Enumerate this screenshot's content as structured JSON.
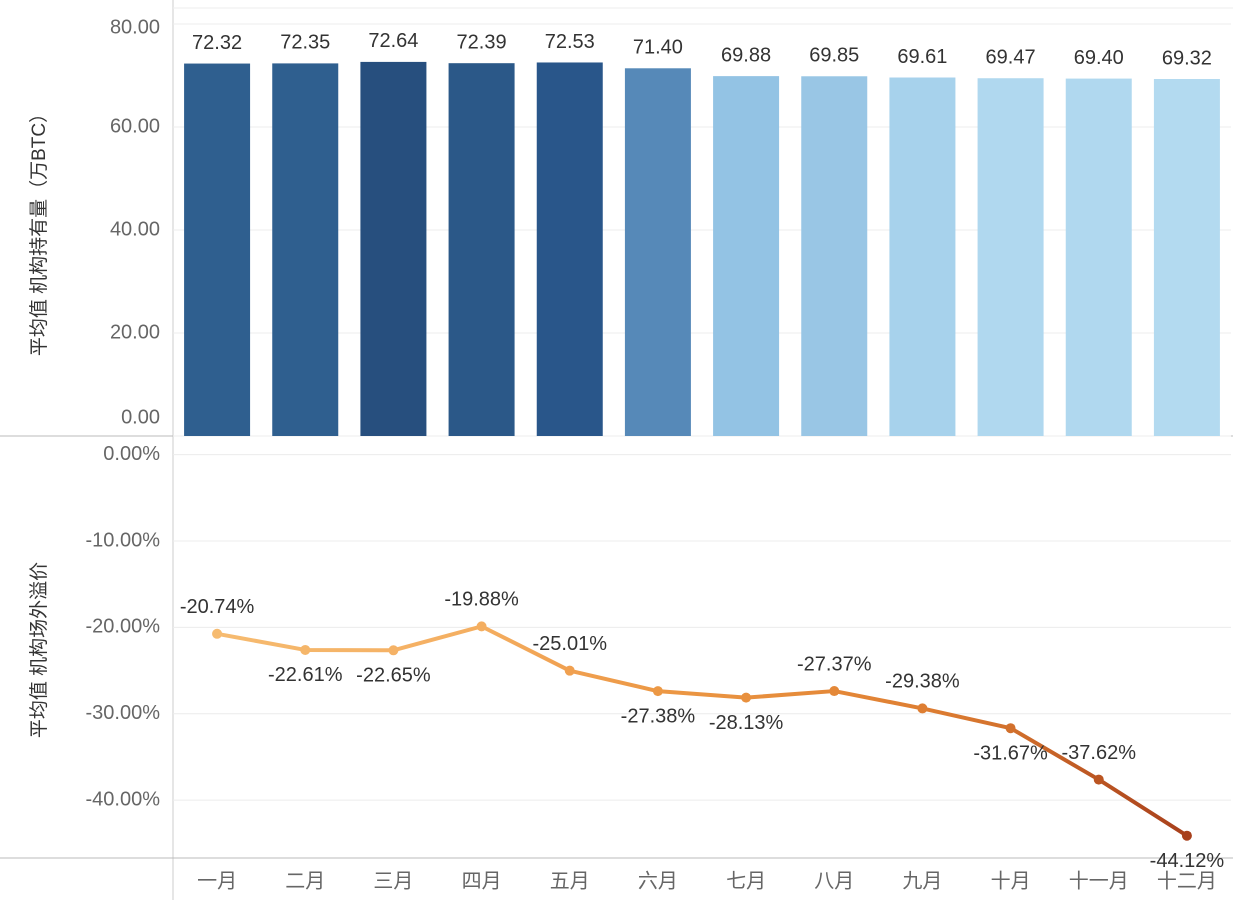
{
  "chart_data": [
    {
      "type": "bar",
      "ylabel": "平均值 机构持有量（万BTC）",
      "values": [
        72.32,
        72.35,
        72.64,
        72.39,
        72.53,
        71.4,
        69.88,
        69.85,
        69.61,
        69.47,
        69.4,
        69.32
      ],
      "value_labels": [
        "72.32",
        "72.35",
        "72.64",
        "72.39",
        "72.53",
        "71.40",
        "69.88",
        "69.85",
        "69.61",
        "69.47",
        "69.40",
        "69.32"
      ],
      "colors": [
        "#2f5f8f",
        "#2f5f8f",
        "#274f7e",
        "#2b5888",
        "#29568a",
        "#5689b8",
        "#93c3e4",
        "#99c6e5",
        "#a7d2ec",
        "#b0d8ef",
        "#b0d8ef",
        "#b3daf0"
      ],
      "ylim": [
        0,
        80
      ],
      "yticks": [
        {
          "value": 0,
          "label": "0.00"
        },
        {
          "value": 20,
          "label": "20.00"
        },
        {
          "value": 40,
          "label": "40.00"
        },
        {
          "value": 60,
          "label": "60.00"
        },
        {
          "value": 80,
          "label": "80.00"
        }
      ],
      "grid": true
    },
    {
      "type": "line",
      "ylabel": "平均值 机构场外溢价",
      "categories": [
        "一月",
        "二月",
        "三月",
        "四月",
        "五月",
        "六月",
        "七月",
        "八月",
        "九月",
        "十月",
        "十一月",
        "十二月"
      ],
      "values": [
        -20.74,
        -22.61,
        -22.65,
        -19.88,
        -25.01,
        -27.38,
        -28.13,
        -27.37,
        -29.38,
        -31.67,
        -37.62,
        -44.12
      ],
      "value_labels": [
        "-20.74%",
        "-22.61%",
        "-22.65%",
        "-19.88%",
        "-25.01%",
        "-27.38%",
        "-28.13%",
        "-27.37%",
        "-29.38%",
        "-31.67%",
        "-37.62%",
        "-44.12%"
      ],
      "colors": [
        "#f6bb70",
        "#f5b66a",
        "#f5b266",
        "#f4ae60",
        "#f0a050",
        "#ec9845",
        "#e8903e",
        "#e48838",
        "#de7e32",
        "#d2702c",
        "#bb5522",
        "#a8401c"
      ],
      "ylim": [
        -46.7,
        1.7
      ],
      "yticks": [
        {
          "value": 0,
          "label": "0.00%"
        },
        {
          "value": -10,
          "label": "-10.00%"
        },
        {
          "value": -20,
          "label": "-20.00%"
        },
        {
          "value": -30,
          "label": "-30.00%"
        },
        {
          "value": -40,
          "label": "-40.00%"
        }
      ],
      "grid": true
    }
  ]
}
